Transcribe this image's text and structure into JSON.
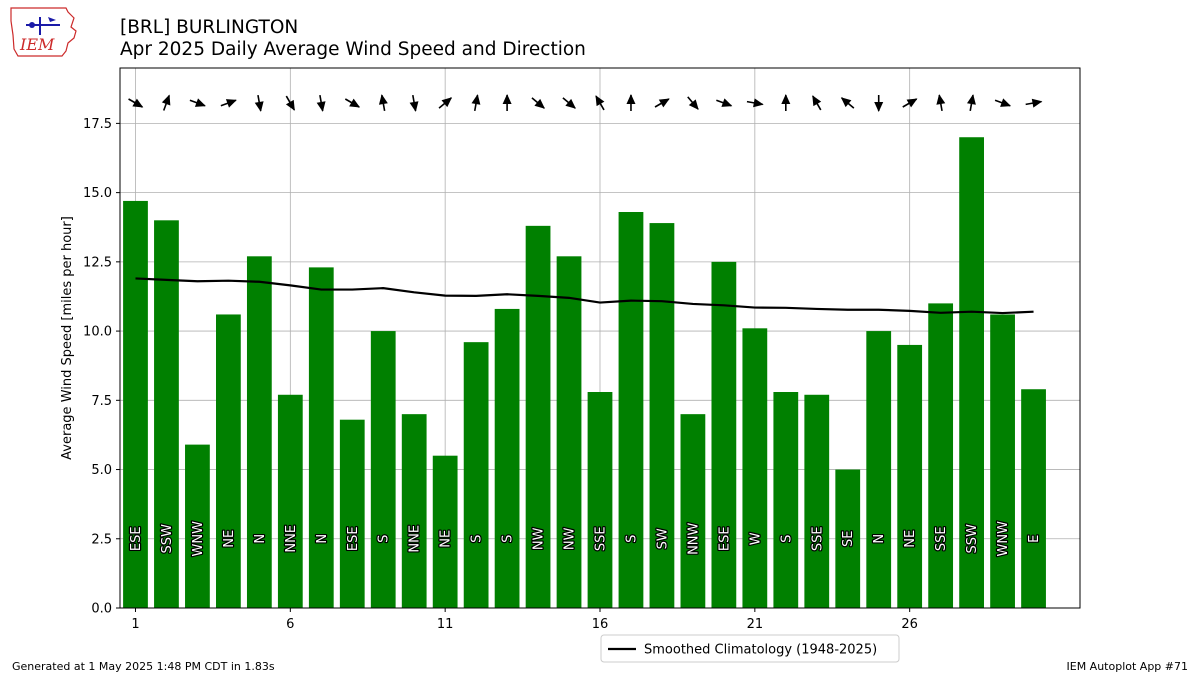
{
  "header": {
    "title_line1": "[BRL] BURLINGTON",
    "title_line2": "Apr 2025 Daily Average Wind Speed and Direction",
    "logo_text": "IEM"
  },
  "footer": {
    "generated": "Generated at 1 May 2025 1:48 PM CDT in 1.83s",
    "app": "IEM Autoplot App #71"
  },
  "chart_data": {
    "type": "bar",
    "ylabel": "Average Wind Speed [miles per hour]",
    "ylim": [
      0,
      19.5
    ],
    "xlim": [
      0.5,
      31.5
    ],
    "grid": true,
    "legend_placement": "bottom-center, below axes",
    "xticks": [
      1,
      6,
      11,
      16,
      21,
      26
    ],
    "yticks": [
      "0.0",
      "2.5",
      "5.0",
      "7.5",
      "10.0",
      "12.5",
      "15.0",
      "17.5"
    ],
    "bar_color": "#008000",
    "days": [
      1,
      2,
      3,
      4,
      5,
      6,
      7,
      8,
      9,
      10,
      11,
      12,
      13,
      14,
      15,
      16,
      17,
      18,
      19,
      20,
      21,
      22,
      23,
      24,
      25,
      26,
      27,
      28,
      29,
      30
    ],
    "speeds": [
      14.7,
      14.0,
      5.9,
      10.6,
      12.7,
      7.7,
      12.3,
      6.8,
      10.0,
      7.0,
      5.5,
      9.6,
      10.8,
      13.8,
      12.7,
      7.8,
      14.3,
      13.9,
      7.0,
      12.5,
      10.1,
      7.8,
      7.7,
      5.0,
      10.0,
      9.5,
      11.0,
      17.0,
      10.6,
      7.9
    ],
    "directions": [
      "ESE",
      "SSW",
      "WNW",
      "NE",
      "N",
      "NNE",
      "N",
      "ESE",
      "S",
      "NNE",
      "NE",
      "S",
      "S",
      "NW",
      "NW",
      "SSE",
      "S",
      "SW",
      "NNW",
      "ESE",
      "W",
      "S",
      "SSE",
      "SE",
      "N",
      "NE",
      "SSE",
      "SSW",
      "WNW",
      "E"
    ],
    "arrow_angles_deg": [
      -30,
      70,
      -20,
      20,
      -80,
      -60,
      -80,
      -30,
      100,
      -80,
      40,
      80,
      90,
      -40,
      -40,
      120,
      90,
      30,
      -50,
      -20,
      -10,
      90,
      120,
      140,
      -90,
      30,
      100,
      80,
      -20,
      10
    ],
    "series": [
      {
        "name": "Smoothed Climatology (1948-2025)",
        "type": "line",
        "color": "#000000",
        "values": [
          11.9,
          11.85,
          11.8,
          11.82,
          11.78,
          11.65,
          11.5,
          11.5,
          11.55,
          11.4,
          11.28,
          11.27,
          11.33,
          11.27,
          11.2,
          11.03,
          11.1,
          11.08,
          10.98,
          10.93,
          10.85,
          10.84,
          10.8,
          10.77,
          10.77,
          10.73,
          10.66,
          10.7,
          10.65,
          10.7
        ]
      }
    ]
  }
}
